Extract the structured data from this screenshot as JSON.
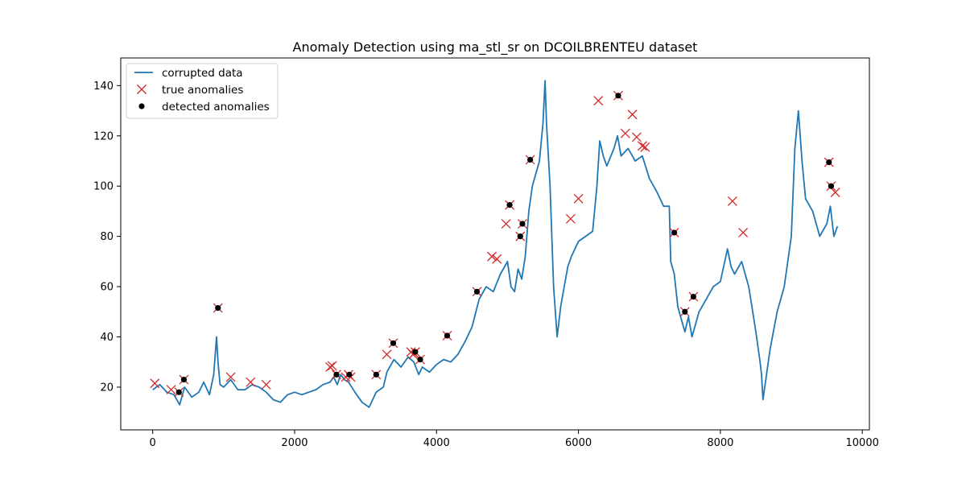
{
  "chart_data": {
    "type": "line",
    "title": "Anomaly Detection using ma_stl_sr on DCOILBRENTEU dataset",
    "xlabel": "",
    "ylabel": "",
    "xlim": [
      -450,
      10100
    ],
    "ylim": [
      3,
      151
    ],
    "xticks": [
      0,
      2000,
      4000,
      6000,
      8000,
      10000
    ],
    "yticks": [
      20,
      40,
      60,
      80,
      100,
      120,
      140
    ],
    "grid": false,
    "legend_position": "top-left",
    "colors": {
      "line": "#1f77b4",
      "true_marker": "#d62728",
      "detected_marker": "#000000"
    },
    "series": [
      {
        "name": "corrupted data",
        "kind": "line",
        "x": [
          0,
          100,
          200,
          300,
          380,
          450,
          550,
          650,
          720,
          800,
          860,
          900,
          920,
          950,
          1000,
          1100,
          1200,
          1300,
          1400,
          1500,
          1600,
          1700,
          1800,
          1900,
          2000,
          2100,
          2200,
          2300,
          2400,
          2500,
          2550,
          2600,
          2650,
          2700,
          2760,
          2850,
          2950,
          3050,
          3150,
          3250,
          3300,
          3400,
          3500,
          3600,
          3680,
          3750,
          3800,
          3900,
          4000,
          4100,
          4200,
          4300,
          4400,
          4500,
          4600,
          4700,
          4800,
          4900,
          5000,
          5050,
          5100,
          5150,
          5200,
          5250,
          5300,
          5350,
          5400,
          5450,
          5500,
          5530,
          5550,
          5600,
          5650,
          5700,
          5750,
          5800,
          5850,
          5900,
          6000,
          6100,
          6200,
          6260,
          6300,
          6350,
          6400,
          6500,
          6550,
          6600,
          6700,
          6800,
          6900,
          7000,
          7100,
          7200,
          7280,
          7300,
          7350,
          7400,
          7500,
          7550,
          7600,
          7700,
          7800,
          7900,
          8000,
          8100,
          8150,
          8200,
          8300,
          8400,
          8500,
          8560,
          8580,
          8600,
          8700,
          8800,
          8900,
          9000,
          9050,
          9100,
          9150,
          9200,
          9300,
          9400,
          9500,
          9550,
          9600,
          9650
        ],
        "y": [
          19,
          21,
          18,
          17,
          13,
          20,
          16,
          18,
          22,
          17,
          25,
          40,
          30,
          21,
          20,
          23,
          19,
          19,
          21,
          20,
          18,
          15,
          14,
          17,
          18,
          17,
          18,
          19,
          21,
          22,
          24,
          21,
          25,
          23,
          22,
          18,
          14,
          12,
          18,
          20,
          26,
          31,
          28,
          32,
          30,
          25,
          28,
          26,
          29,
          31,
          30,
          33,
          38,
          44,
          55,
          60,
          58,
          65,
          70,
          60,
          58,
          67,
          63,
          72,
          90,
          100,
          105,
          110,
          125,
          142,
          125,
          100,
          60,
          40,
          52,
          60,
          68,
          72,
          78,
          80,
          82,
          100,
          118,
          112,
          108,
          115,
          120,
          112,
          115,
          110,
          112,
          103,
          98,
          92,
          92,
          70,
          65,
          52,
          42,
          48,
          40,
          50,
          55,
          60,
          62,
          75,
          68,
          65,
          70,
          60,
          42,
          30,
          25,
          15,
          35,
          50,
          60,
          80,
          115,
          130,
          110,
          95,
          90,
          80,
          85,
          92,
          80,
          84
        ]
      },
      {
        "name": "true anomalies",
        "kind": "scatter",
        "x": [
          30,
          260,
          370,
          440,
          920,
          1100,
          1380,
          1600,
          2500,
          2530,
          2590,
          2720,
          2760,
          2790,
          3150,
          3300,
          3390,
          3640,
          3670,
          3700,
          3770,
          4150,
          4570,
          4780,
          4850,
          4980,
          5030,
          5180,
          5210,
          5320,
          5890,
          6000,
          6280,
          6560,
          6660,
          6760,
          6820,
          6900,
          6940,
          7350,
          7500,
          7620,
          8170,
          8320,
          9530,
          9560,
          9620
        ],
        "y": [
          21.5,
          19,
          18,
          23,
          51.5,
          24,
          22,
          21,
          28,
          28.5,
          25,
          24,
          25,
          24,
          25,
          33,
          37.5,
          34,
          33,
          34,
          31,
          40.5,
          58,
          72,
          71,
          85,
          92.5,
          80,
          85,
          110.5,
          87,
          95,
          134,
          136,
          121,
          128.5,
          119.5,
          116,
          115.5,
          81.5,
          50,
          56,
          94,
          81.5,
          109.5,
          100,
          97.5
        ]
      },
      {
        "name": "detected anomalies",
        "kind": "scatter",
        "x": [
          370,
          440,
          920,
          2590,
          2770,
          3150,
          3390,
          3700,
          3770,
          4150,
          4570,
          5030,
          5180,
          5210,
          5320,
          6560,
          7350,
          7500,
          7620,
          9530,
          9560
        ],
        "y": [
          18,
          23,
          51.5,
          25,
          25,
          25,
          37.5,
          34,
          31,
          40.5,
          58,
          92.5,
          80,
          85,
          110.5,
          136,
          81.5,
          50,
          56,
          109.5,
          100
        ]
      }
    ]
  }
}
